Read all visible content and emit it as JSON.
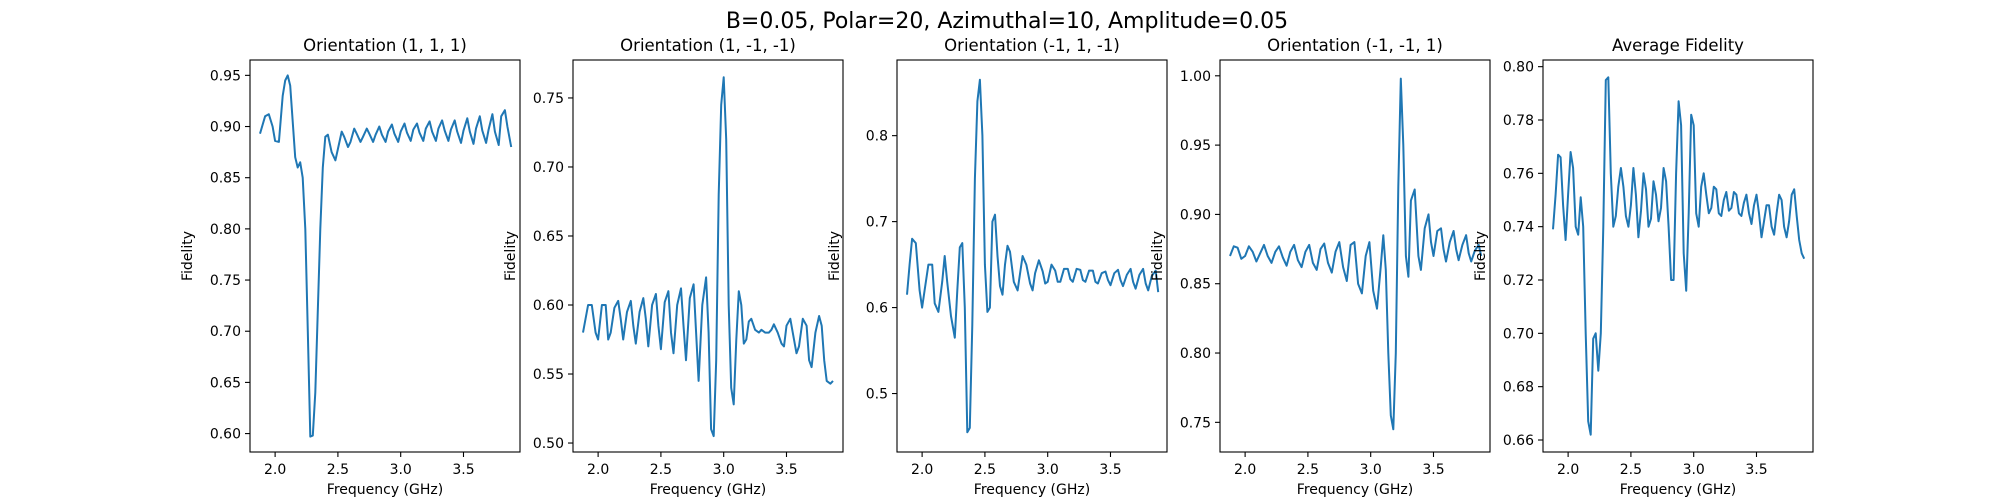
{
  "figure": {
    "suptitle": "B=0.05, Polar=20, Azimuthal=10, Amplitude=0.05"
  },
  "chart_data": [
    {
      "type": "line",
      "title": "Orientation (1, 1, 1)",
      "xlabel": "Frequency (GHz)",
      "ylabel": "Fidelity",
      "xlim": [
        1.8,
        3.95
      ],
      "ylim": [
        0.582,
        0.965
      ],
      "xticks": [
        2.0,
        2.5,
        3.0,
        3.5
      ],
      "yticks": [
        0.6,
        0.65,
        0.7,
        0.75,
        0.8,
        0.85,
        0.9,
        0.95
      ],
      "ytick_fmt": 2,
      "grid": false,
      "series": [
        {
          "color": "#1f77b4",
          "x": [
            1.88,
            1.92,
            1.95,
            1.98,
            2.0,
            2.03,
            2.06,
            2.08,
            2.1,
            2.12,
            2.14,
            2.16,
            2.18,
            2.2,
            2.22,
            2.24,
            2.26,
            2.28,
            2.3,
            2.32,
            2.34,
            2.36,
            2.38,
            2.4,
            2.42,
            2.45,
            2.48,
            2.5,
            2.53,
            2.55,
            2.58,
            2.6,
            2.63,
            2.65,
            2.68,
            2.7,
            2.73,
            2.75,
            2.78,
            2.8,
            2.83,
            2.85,
            2.88,
            2.9,
            2.93,
            2.95,
            2.98,
            3.0,
            3.03,
            3.05,
            3.08,
            3.1,
            3.13,
            3.15,
            3.18,
            3.2,
            3.23,
            3.25,
            3.28,
            3.3,
            3.33,
            3.35,
            3.38,
            3.4,
            3.43,
            3.45,
            3.48,
            3.5,
            3.53,
            3.55,
            3.58,
            3.6,
            3.63,
            3.65,
            3.68,
            3.7,
            3.73,
            3.75,
            3.78,
            3.8,
            3.83,
            3.85,
            3.88
          ],
          "y": [
            0.893,
            0.91,
            0.912,
            0.9,
            0.886,
            0.885,
            0.93,
            0.945,
            0.95,
            0.94,
            0.905,
            0.87,
            0.86,
            0.865,
            0.85,
            0.8,
            0.7,
            0.597,
            0.598,
            0.64,
            0.72,
            0.8,
            0.86,
            0.89,
            0.892,
            0.875,
            0.867,
            0.878,
            0.895,
            0.89,
            0.88,
            0.885,
            0.898,
            0.893,
            0.885,
            0.89,
            0.898,
            0.893,
            0.885,
            0.892,
            0.9,
            0.892,
            0.885,
            0.895,
            0.902,
            0.893,
            0.885,
            0.895,
            0.903,
            0.894,
            0.886,
            0.897,
            0.903,
            0.894,
            0.886,
            0.898,
            0.905,
            0.895,
            0.886,
            0.898,
            0.906,
            0.896,
            0.886,
            0.897,
            0.906,
            0.895,
            0.884,
            0.896,
            0.908,
            0.895,
            0.883,
            0.898,
            0.91,
            0.896,
            0.884,
            0.897,
            0.912,
            0.895,
            0.882,
            0.91,
            0.916,
            0.9,
            0.88
          ]
        }
      ]
    },
    {
      "type": "line",
      "title": "Orientation (1, -1, -1)",
      "xlabel": "Frequency (GHz)",
      "ylabel": "Fidelity",
      "xlim": [
        1.8,
        3.95
      ],
      "ylim": [
        0.4935,
        0.7775
      ],
      "xticks": [
        2.0,
        2.5,
        3.0,
        3.5
      ],
      "yticks": [
        0.5,
        0.55,
        0.6,
        0.65,
        0.7,
        0.75
      ],
      "ytick_fmt": 2,
      "grid": false,
      "series": [
        {
          "color": "#1f77b4",
          "x": [
            1.88,
            1.92,
            1.95,
            1.98,
            2.0,
            2.03,
            2.06,
            2.08,
            2.1,
            2.13,
            2.16,
            2.18,
            2.2,
            2.23,
            2.26,
            2.28,
            2.3,
            2.33,
            2.36,
            2.38,
            2.4,
            2.43,
            2.46,
            2.48,
            2.5,
            2.53,
            2.56,
            2.58,
            2.6,
            2.63,
            2.66,
            2.68,
            2.7,
            2.73,
            2.76,
            2.78,
            2.8,
            2.83,
            2.86,
            2.88,
            2.9,
            2.92,
            2.94,
            2.96,
            2.98,
            3.0,
            3.02,
            3.04,
            3.06,
            3.08,
            3.1,
            3.12,
            3.14,
            3.16,
            3.18,
            3.2,
            3.22,
            3.25,
            3.28,
            3.3,
            3.33,
            3.36,
            3.38,
            3.4,
            3.43,
            3.46,
            3.48,
            3.5,
            3.53,
            3.56,
            3.58,
            3.6,
            3.63,
            3.66,
            3.68,
            3.7,
            3.73,
            3.76,
            3.78,
            3.8,
            3.82,
            3.85,
            3.87
          ],
          "y": [
            0.58,
            0.6,
            0.6,
            0.58,
            0.575,
            0.6,
            0.6,
            0.575,
            0.58,
            0.598,
            0.603,
            0.59,
            0.575,
            0.595,
            0.603,
            0.585,
            0.572,
            0.595,
            0.605,
            0.59,
            0.57,
            0.6,
            0.608,
            0.585,
            0.568,
            0.602,
            0.61,
            0.58,
            0.565,
            0.6,
            0.612,
            0.585,
            0.56,
            0.605,
            0.615,
            0.58,
            0.545,
            0.6,
            0.62,
            0.58,
            0.51,
            0.505,
            0.56,
            0.68,
            0.745,
            0.765,
            0.72,
            0.6,
            0.54,
            0.528,
            0.575,
            0.61,
            0.6,
            0.572,
            0.575,
            0.588,
            0.59,
            0.582,
            0.58,
            0.582,
            0.58,
            0.58,
            0.582,
            0.586,
            0.58,
            0.572,
            0.57,
            0.585,
            0.59,
            0.575,
            0.565,
            0.57,
            0.59,
            0.585,
            0.56,
            0.555,
            0.58,
            0.592,
            0.585,
            0.56,
            0.545,
            0.543,
            0.545
          ]
        }
      ]
    },
    {
      "type": "line",
      "title": "Orientation (-1, 1, -1)",
      "xlabel": "Frequency (GHz)",
      "ylabel": "Fidelity",
      "xlim": [
        1.8,
        3.95
      ],
      "ylim": [
        0.432,
        0.888
      ],
      "xticks": [
        2.0,
        2.5,
        3.0,
        3.5
      ],
      "yticks": [
        0.5,
        0.6,
        0.7,
        0.8
      ],
      "ytick_fmt": 1,
      "grid": false,
      "series": [
        {
          "color": "#1f77b4",
          "x": [
            1.88,
            1.9,
            1.92,
            1.95,
            1.98,
            2.0,
            2.02,
            2.05,
            2.08,
            2.1,
            2.13,
            2.16,
            2.18,
            2.2,
            2.23,
            2.26,
            2.28,
            2.3,
            2.32,
            2.34,
            2.36,
            2.38,
            2.4,
            2.42,
            2.44,
            2.46,
            2.48,
            2.5,
            2.52,
            2.54,
            2.56,
            2.58,
            2.6,
            2.62,
            2.64,
            2.66,
            2.68,
            2.7,
            2.73,
            2.76,
            2.78,
            2.8,
            2.83,
            2.86,
            2.88,
            2.9,
            2.93,
            2.96,
            2.98,
            3.0,
            3.03,
            3.06,
            3.08,
            3.1,
            3.13,
            3.16,
            3.18,
            3.2,
            3.23,
            3.26,
            3.28,
            3.3,
            3.33,
            3.36,
            3.38,
            3.4,
            3.43,
            3.46,
            3.48,
            3.5,
            3.53,
            3.56,
            3.58,
            3.6,
            3.63,
            3.66,
            3.68,
            3.7,
            3.73,
            3.76,
            3.78,
            3.8,
            3.83,
            3.86,
            3.88
          ],
          "y": [
            0.615,
            0.65,
            0.68,
            0.675,
            0.62,
            0.6,
            0.62,
            0.65,
            0.65,
            0.605,
            0.595,
            0.63,
            0.66,
            0.63,
            0.59,
            0.565,
            0.62,
            0.67,
            0.675,
            0.6,
            0.455,
            0.46,
            0.58,
            0.75,
            0.84,
            0.865,
            0.8,
            0.65,
            0.595,
            0.6,
            0.7,
            0.708,
            0.66,
            0.625,
            0.615,
            0.65,
            0.672,
            0.665,
            0.63,
            0.62,
            0.64,
            0.66,
            0.65,
            0.628,
            0.62,
            0.64,
            0.655,
            0.642,
            0.628,
            0.63,
            0.65,
            0.643,
            0.63,
            0.63,
            0.645,
            0.645,
            0.633,
            0.63,
            0.645,
            0.644,
            0.632,
            0.63,
            0.643,
            0.643,
            0.63,
            0.628,
            0.64,
            0.642,
            0.632,
            0.626,
            0.64,
            0.644,
            0.632,
            0.625,
            0.638,
            0.645,
            0.63,
            0.622,
            0.638,
            0.645,
            0.628,
            0.62,
            0.637,
            0.643,
            0.618
          ]
        }
      ]
    },
    {
      "type": "line",
      "title": "Orientation (-1, -1, 1)",
      "xlabel": "Frequency (GHz)",
      "ylabel": "Fidelity",
      "xlim": [
        1.8,
        3.95
      ],
      "ylim": [
        0.7286,
        1.0114
      ],
      "xticks": [
        2.0,
        2.5,
        3.0,
        3.5
      ],
      "yticks": [
        0.75,
        0.8,
        0.85,
        0.9,
        0.95,
        1.0
      ],
      "ytick_fmt": 2,
      "grid": false,
      "series": [
        {
          "color": "#1f77b4",
          "x": [
            1.88,
            1.91,
            1.94,
            1.97,
            2.0,
            2.03,
            2.06,
            2.09,
            2.12,
            2.15,
            2.18,
            2.21,
            2.24,
            2.27,
            2.3,
            2.33,
            2.36,
            2.39,
            2.42,
            2.45,
            2.48,
            2.51,
            2.54,
            2.57,
            2.6,
            2.63,
            2.66,
            2.69,
            2.72,
            2.75,
            2.78,
            2.81,
            2.84,
            2.87,
            2.9,
            2.93,
            2.96,
            2.99,
            3.02,
            3.05,
            3.08,
            3.1,
            3.12,
            3.14,
            3.16,
            3.18,
            3.2,
            3.22,
            3.24,
            3.26,
            3.28,
            3.3,
            3.32,
            3.35,
            3.38,
            3.4,
            3.43,
            3.46,
            3.48,
            3.5,
            3.53,
            3.56,
            3.58,
            3.6,
            3.63,
            3.66,
            3.68,
            3.7,
            3.73,
            3.76,
            3.78,
            3.8,
            3.83,
            3.86,
            3.88
          ],
          "y": [
            0.87,
            0.877,
            0.876,
            0.868,
            0.87,
            0.877,
            0.873,
            0.866,
            0.872,
            0.878,
            0.87,
            0.865,
            0.873,
            0.877,
            0.869,
            0.863,
            0.873,
            0.878,
            0.867,
            0.862,
            0.873,
            0.878,
            0.865,
            0.86,
            0.875,
            0.879,
            0.865,
            0.858,
            0.873,
            0.88,
            0.862,
            0.852,
            0.878,
            0.88,
            0.85,
            0.843,
            0.87,
            0.88,
            0.845,
            0.832,
            0.862,
            0.885,
            0.86,
            0.8,
            0.755,
            0.745,
            0.8,
            0.92,
            0.998,
            0.95,
            0.87,
            0.855,
            0.91,
            0.918,
            0.87,
            0.86,
            0.89,
            0.9,
            0.88,
            0.87,
            0.888,
            0.89,
            0.875,
            0.866,
            0.88,
            0.888,
            0.875,
            0.867,
            0.878,
            0.885,
            0.872,
            0.866,
            0.874,
            0.878,
            0.87
          ]
        }
      ]
    },
    {
      "type": "line",
      "title": "Average Fidelity",
      "xlabel": "Frequency (GHz)",
      "ylabel": "Fidelity",
      "xlim": [
        1.8,
        3.95
      ],
      "ylim": [
        0.6555,
        0.8025
      ],
      "xticks": [
        2.0,
        2.5,
        3.0,
        3.5
      ],
      "yticks": [
        0.66,
        0.68,
        0.7,
        0.72,
        0.74,
        0.76,
        0.78,
        0.8
      ],
      "ytick_fmt": 2,
      "grid": false,
      "series": [
        {
          "color": "#1f77b4",
          "x": [
            1.88,
            1.9,
            1.92,
            1.94,
            1.96,
            1.98,
            2.0,
            2.02,
            2.04,
            2.06,
            2.08,
            2.1,
            2.12,
            2.14,
            2.16,
            2.18,
            2.2,
            2.22,
            2.24,
            2.26,
            2.28,
            2.3,
            2.32,
            2.34,
            2.36,
            2.38,
            2.4,
            2.42,
            2.44,
            2.46,
            2.48,
            2.5,
            2.52,
            2.54,
            2.56,
            2.58,
            2.6,
            2.62,
            2.64,
            2.66,
            2.68,
            2.7,
            2.72,
            2.74,
            2.76,
            2.78,
            2.8,
            2.82,
            2.84,
            2.86,
            2.88,
            2.9,
            2.92,
            2.94,
            2.96,
            2.98,
            3.0,
            3.02,
            3.04,
            3.06,
            3.08,
            3.1,
            3.12,
            3.14,
            3.16,
            3.18,
            3.2,
            3.22,
            3.24,
            3.26,
            3.28,
            3.3,
            3.32,
            3.34,
            3.36,
            3.38,
            3.4,
            3.42,
            3.44,
            3.46,
            3.48,
            3.5,
            3.52,
            3.54,
            3.56,
            3.58,
            3.6,
            3.62,
            3.64,
            3.66,
            3.68,
            3.7,
            3.72,
            3.74,
            3.76,
            3.78,
            3.8,
            3.82,
            3.84,
            3.86,
            3.88
          ],
          "y": [
            0.739,
            0.752,
            0.767,
            0.766,
            0.748,
            0.735,
            0.752,
            0.768,
            0.762,
            0.74,
            0.737,
            0.751,
            0.74,
            0.7,
            0.667,
            0.662,
            0.698,
            0.7,
            0.686,
            0.7,
            0.74,
            0.795,
            0.796,
            0.76,
            0.74,
            0.744,
            0.755,
            0.762,
            0.755,
            0.744,
            0.74,
            0.748,
            0.762,
            0.752,
            0.736,
            0.746,
            0.76,
            0.754,
            0.74,
            0.743,
            0.757,
            0.752,
            0.742,
            0.747,
            0.762,
            0.757,
            0.74,
            0.72,
            0.72,
            0.76,
            0.787,
            0.778,
            0.73,
            0.716,
            0.745,
            0.782,
            0.778,
            0.745,
            0.74,
            0.755,
            0.76,
            0.752,
            0.745,
            0.747,
            0.755,
            0.754,
            0.745,
            0.744,
            0.75,
            0.753,
            0.746,
            0.747,
            0.753,
            0.752,
            0.745,
            0.744,
            0.749,
            0.752,
            0.745,
            0.741,
            0.748,
            0.752,
            0.745,
            0.736,
            0.742,
            0.748,
            0.748,
            0.74,
            0.737,
            0.745,
            0.752,
            0.75,
            0.74,
            0.736,
            0.742,
            0.752,
            0.754,
            0.744,
            0.735,
            0.73,
            0.728
          ]
        }
      ]
    }
  ]
}
